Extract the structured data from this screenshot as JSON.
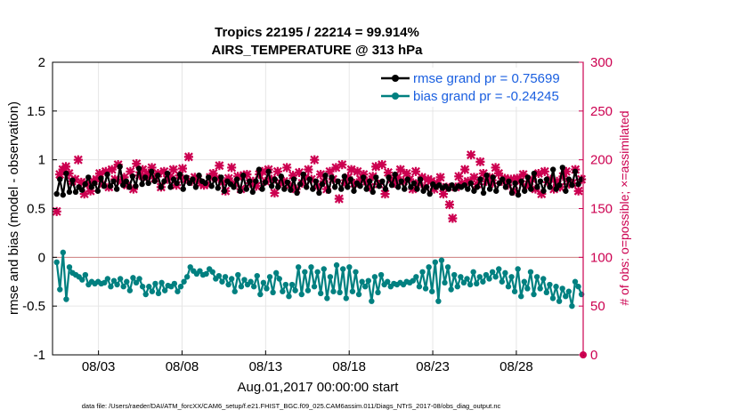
{
  "chart_data": {
    "type": "line",
    "title": "Tropics 22195 / 22214 = 99.914%",
    "subtitle": "AIRS_TEMPERATURE @ 313 hPa",
    "xlabel": "Aug.01,2017 00:00:00 start",
    "ylabel_left": "rmse and bias (model - observation)",
    "ylabel_right": "# of obs: o=possible; ×=assimilated",
    "footer": "data file: /Users/raeder/DAI/ATM_forcXX/CAM6_setup/f.e21.FHIST_BGC.f09_025.CAM6assim.011/Diags_NTrS_2017-08/obs_diag_output.nc",
    "xlim": [
      0.25,
      32
    ],
    "ylim_left": [
      -1,
      2
    ],
    "ylim_right": [
      0,
      300
    ],
    "x_ticks": [
      {
        "value": 3,
        "label": "08/03"
      },
      {
        "value": 8,
        "label": "08/08"
      },
      {
        "value": 13,
        "label": "08/13"
      },
      {
        "value": 18,
        "label": "08/18"
      },
      {
        "value": 23,
        "label": "08/23"
      },
      {
        "value": 28,
        "label": "08/28"
      }
    ],
    "y_ticks_left": [
      "-1",
      "-0.5",
      "0",
      "0.5",
      "1",
      "1.5",
      "2"
    ],
    "y_ticks_right": [
      "0",
      "50",
      "100",
      "150",
      "200",
      "250",
      "300"
    ],
    "colors": {
      "rmse": "#000000",
      "bias": "#008080",
      "obs": "#cc0050",
      "zero_line": "#d08080",
      "grid": "#e6e6e6"
    },
    "series": [
      {
        "name": "rmse",
        "legend": "rmse grand pr = 0.75699",
        "values": [
          0.65,
          0.8,
          0.64,
          0.86,
          0.67,
          0.79,
          0.67,
          0.72,
          0.69,
          0.75,
          0.82,
          0.72,
          0.76,
          0.68,
          0.81,
          0.73,
          0.85,
          0.73,
          0.78,
          0.7,
          0.93,
          0.74,
          0.78,
          0.72,
          0.83,
          0.73,
          0.91,
          0.75,
          0.82,
          0.76,
          0.88,
          0.78,
          0.84,
          0.72,
          0.78,
          0.86,
          0.72,
          0.8,
          0.76,
          0.85,
          0.7,
          0.82,
          0.76,
          0.8,
          0.72,
          0.84,
          0.78,
          0.76,
          0.82,
          0.73,
          0.8,
          0.71,
          0.82,
          0.68,
          0.78,
          0.75,
          0.72,
          0.8,
          0.68,
          0.84,
          0.7,
          0.78,
          0.67,
          0.78,
          0.9,
          0.7,
          0.77,
          0.88,
          0.73,
          0.8,
          0.72,
          0.83,
          0.7,
          0.77,
          0.69,
          0.8,
          0.66,
          0.75,
          0.85,
          0.72,
          0.8,
          0.7,
          0.78,
          0.66,
          0.75,
          0.84,
          0.68,
          0.82,
          0.72,
          0.78,
          0.7,
          0.83,
          0.72,
          0.8,
          0.68,
          0.76,
          0.73,
          0.82,
          0.7,
          0.78,
          0.67,
          0.82,
          0.73,
          0.78,
          0.7,
          0.82,
          0.74,
          0.85,
          0.72,
          0.78,
          0.7,
          0.8,
          0.72,
          0.76,
          0.7,
          0.8,
          0.68,
          0.72,
          0.65,
          0.75,
          0.72,
          0.74,
          0.71,
          0.73,
          0.7,
          0.74,
          0.7,
          0.73,
          0.72,
          0.74,
          0.7,
          0.76,
          0.68,
          0.72,
          0.8,
          0.66,
          0.84,
          0.7,
          0.82,
          0.68,
          0.76,
          0.8,
          0.72,
          0.78,
          0.66,
          0.76,
          0.64,
          0.78,
          0.68,
          0.82,
          0.7,
          0.86,
          0.72,
          0.78,
          0.68,
          0.8,
          0.72,
          0.9,
          0.7,
          0.74,
          0.92,
          0.68,
          0.8,
          0.74,
          0.88,
          0.75,
          0.8
        ]
      },
      {
        "name": "bias",
        "legend": "bias grand pr = -0.24245",
        "values": [
          -0.05,
          -0.33,
          0.05,
          -0.43,
          -0.1,
          -0.16,
          -0.18,
          -0.2,
          -0.23,
          -0.18,
          -0.28,
          -0.25,
          -0.27,
          -0.25,
          -0.27,
          -0.26,
          -0.22,
          -0.3,
          -0.24,
          -0.28,
          -0.22,
          -0.3,
          -0.25,
          -0.34,
          -0.21,
          -0.26,
          -0.22,
          -0.3,
          -0.38,
          -0.3,
          -0.35,
          -0.27,
          -0.37,
          -0.26,
          -0.34,
          -0.29,
          -0.3,
          -0.27,
          -0.35,
          -0.3,
          -0.25,
          -0.2,
          -0.1,
          -0.14,
          -0.17,
          -0.14,
          -0.18,
          -0.17,
          -0.12,
          -0.15,
          -0.22,
          -0.19,
          -0.25,
          -0.2,
          -0.28,
          -0.22,
          -0.35,
          -0.18,
          -0.3,
          -0.23,
          -0.28,
          -0.25,
          -0.3,
          -0.19,
          -0.38,
          -0.26,
          -0.32,
          -0.2,
          -0.36,
          -0.16,
          -0.22,
          -0.35,
          -0.28,
          -0.4,
          -0.28,
          -0.34,
          -0.1,
          -0.38,
          -0.15,
          -0.34,
          -0.1,
          -0.3,
          -0.15,
          -0.37,
          -0.12,
          -0.42,
          -0.2,
          -0.35,
          -0.08,
          -0.36,
          -0.12,
          -0.42,
          -0.1,
          -0.35,
          -0.15,
          -0.38,
          -0.25,
          -0.3,
          -0.24,
          -0.45,
          -0.2,
          -0.36,
          -0.18,
          -0.28,
          -0.25,
          -0.3,
          -0.27,
          -0.28,
          -0.26,
          -0.28,
          -0.25,
          -0.26,
          -0.24,
          -0.2,
          -0.3,
          -0.15,
          -0.32,
          -0.1,
          -0.35,
          -0.05,
          -0.45,
          -0.03,
          -0.26,
          -0.1,
          -0.33,
          -0.18,
          -0.3,
          -0.2,
          -0.26,
          -0.22,
          -0.28,
          -0.15,
          -0.27,
          -0.2,
          -0.25,
          -0.18,
          -0.22,
          -0.15,
          -0.2,
          -0.12,
          -0.25,
          -0.16,
          -0.3,
          -0.2,
          -0.35,
          -0.12,
          -0.4,
          -0.25,
          -0.32,
          -0.15,
          -0.38,
          -0.2,
          -0.32,
          -0.22,
          -0.36,
          -0.28,
          -0.42,
          -0.3,
          -0.45,
          -0.32,
          -0.4,
          -0.35,
          -0.5,
          -0.25,
          -0.3,
          -0.38
        ]
      },
      {
        "name": "obs_assimilated",
        "legend": "",
        "values": [
          147,
          185,
          190,
          193,
          186,
          178,
          180,
          200,
          177,
          165,
          175,
          168,
          178,
          180,
          186,
          175,
          188,
          172,
          190,
          180,
          195,
          178,
          182,
          174,
          188,
          170,
          196,
          184,
          190,
          183,
          186,
          192,
          181,
          186,
          172,
          188,
          180,
          183,
          190,
          174,
          184,
          191,
          180,
          203,
          178,
          182,
          180,
          176,
          174,
          175,
          182,
          186,
          181,
          194,
          177,
          168,
          181,
          192,
          176,
          183,
          170,
          184,
          185,
          176,
          178,
          173,
          185,
          188,
          178,
          190,
          180,
          166,
          188,
          176,
          178,
          192,
          174,
          184,
          170,
          187,
          176,
          182,
          190,
          180,
          200,
          173,
          185,
          178,
          170,
          188,
          180,
          192,
          160,
          195,
          176,
          182,
          190,
          176,
          188,
          180,
          185,
          178,
          172,
          183,
          193,
          175,
          195,
          165,
          187,
          180,
          176,
          182,
          190,
          178,
          186,
          180,
          170,
          188,
          176,
          182,
          172,
          180,
          178,
          170,
          176,
          182,
          165,
          172,
          154,
          140,
          172,
          183,
          176,
          190,
          178,
          205,
          182,
          175,
          198,
          186,
          178,
          182,
          176,
          192,
          186,
          178,
          181,
          174,
          180,
          168,
          181,
          178,
          185,
          173,
          178,
          180,
          170,
          186,
          165,
          188,
          177,
          180,
          170,
          178,
          172,
          183,
          188,
          175,
          176,
          190,
          168,
          180
        ]
      }
    ],
    "legend_position": "top-right"
  }
}
